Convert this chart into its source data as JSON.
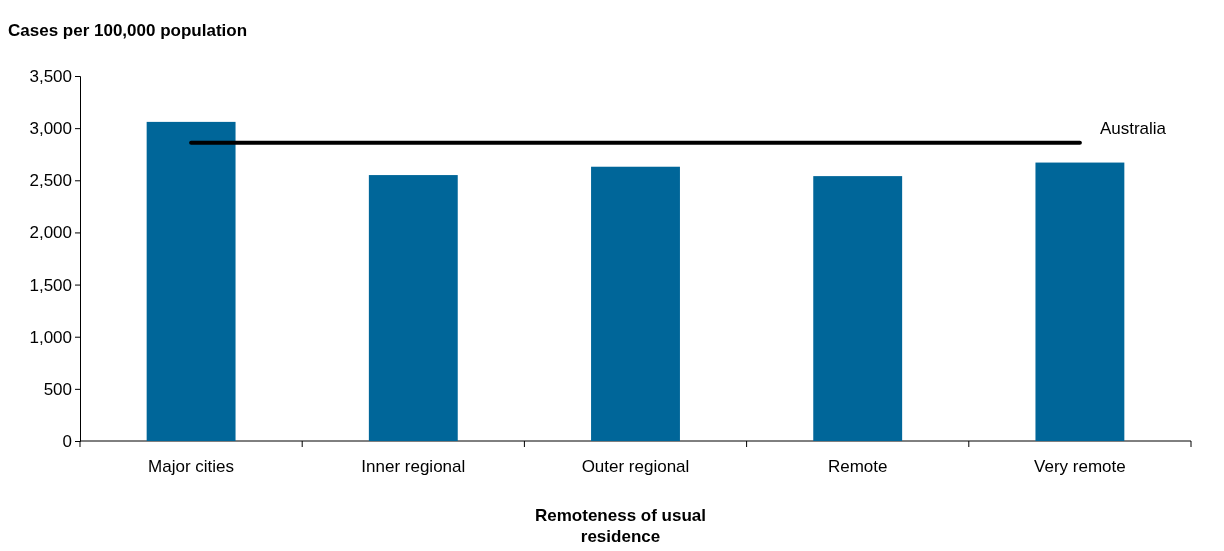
{
  "chart_data": {
    "type": "bar",
    "ylabel": "Cases per 100,000 population",
    "xlabel": "Remoteness of usual residence",
    "categories": [
      "Major cities",
      "Inner regional",
      "Outer regional",
      "Remote",
      "Very remote"
    ],
    "series": [
      {
        "color": "#006699",
        "values": [
          3060,
          2550,
          2630,
          2540,
          2670
        ]
      },
      {
        "type": "line",
        "name": "Australia",
        "color": "#000000",
        "values": [
          2860,
          2860,
          2860,
          2860,
          2860
        ]
      }
    ],
    "ylim": [
      0,
      3500
    ],
    "yticks": [
      {
        "value": 0,
        "label": "0"
      },
      {
        "value": 500,
        "label": "500"
      },
      {
        "value": 1000,
        "label": "1,000"
      },
      {
        "value": 1500,
        "label": "1,500"
      },
      {
        "value": 2000,
        "label": "2,000"
      },
      {
        "value": 2500,
        "label": "2,500"
      },
      {
        "value": 3000,
        "label": "3,000"
      },
      {
        "value": 3500,
        "label": "3,500"
      }
    ],
    "grid": false,
    "legend": false,
    "marker": "none",
    "line_style": "solid"
  }
}
